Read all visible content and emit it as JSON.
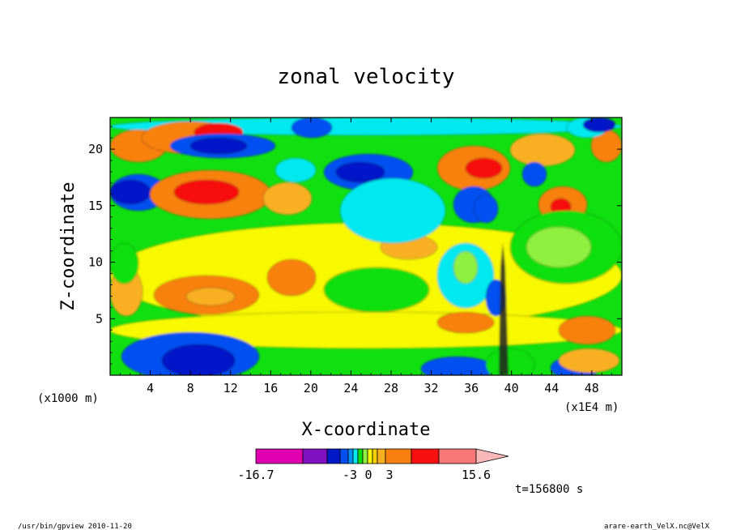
{
  "chart_data": {
    "type": "heatmap",
    "title": "zonal velocity",
    "xlabel": "X-coordinate",
    "ylabel": "Z-coordinate",
    "x_unit_note": "(x1000 m)",
    "x_scale_note": "(x1E4 m)",
    "xlim": [
      0,
      51
    ],
    "ylim": [
      0,
      22.8
    ],
    "x_ticks": [
      "4",
      "8",
      "12",
      "16",
      "20",
      "24",
      "28",
      "32",
      "36",
      "40",
      "44",
      "48"
    ],
    "y_ticks": [
      "5",
      "10",
      "15",
      "20"
    ],
    "time_label": "t=156800 s",
    "colorbar": {
      "labels": [
        "-16.7",
        "-3",
        "0",
        "3",
        "15.6"
      ],
      "min": -16.7,
      "max": 15.6
    },
    "colors": {
      "magenta": "#e000b0",
      "purple": "#8010c0",
      "dark_blue": "#0018c8",
      "blue": "#0050f0",
      "light_blue": "#0090f8",
      "cyan": "#00e8f0",
      "green": "#10e010",
      "light_green": "#90f040",
      "yellow": "#f8f800",
      "gold": "#f8d000",
      "light_orange": "#f8b020",
      "orange": "#f88010",
      "red": "#f81010",
      "salmon": "#f87878",
      "pink": "#f8b8b8"
    }
  },
  "footer": {
    "left": "/usr/bin/gpview  2010-11-20",
    "right": "arare-earth_VelX.nc@VelX"
  }
}
